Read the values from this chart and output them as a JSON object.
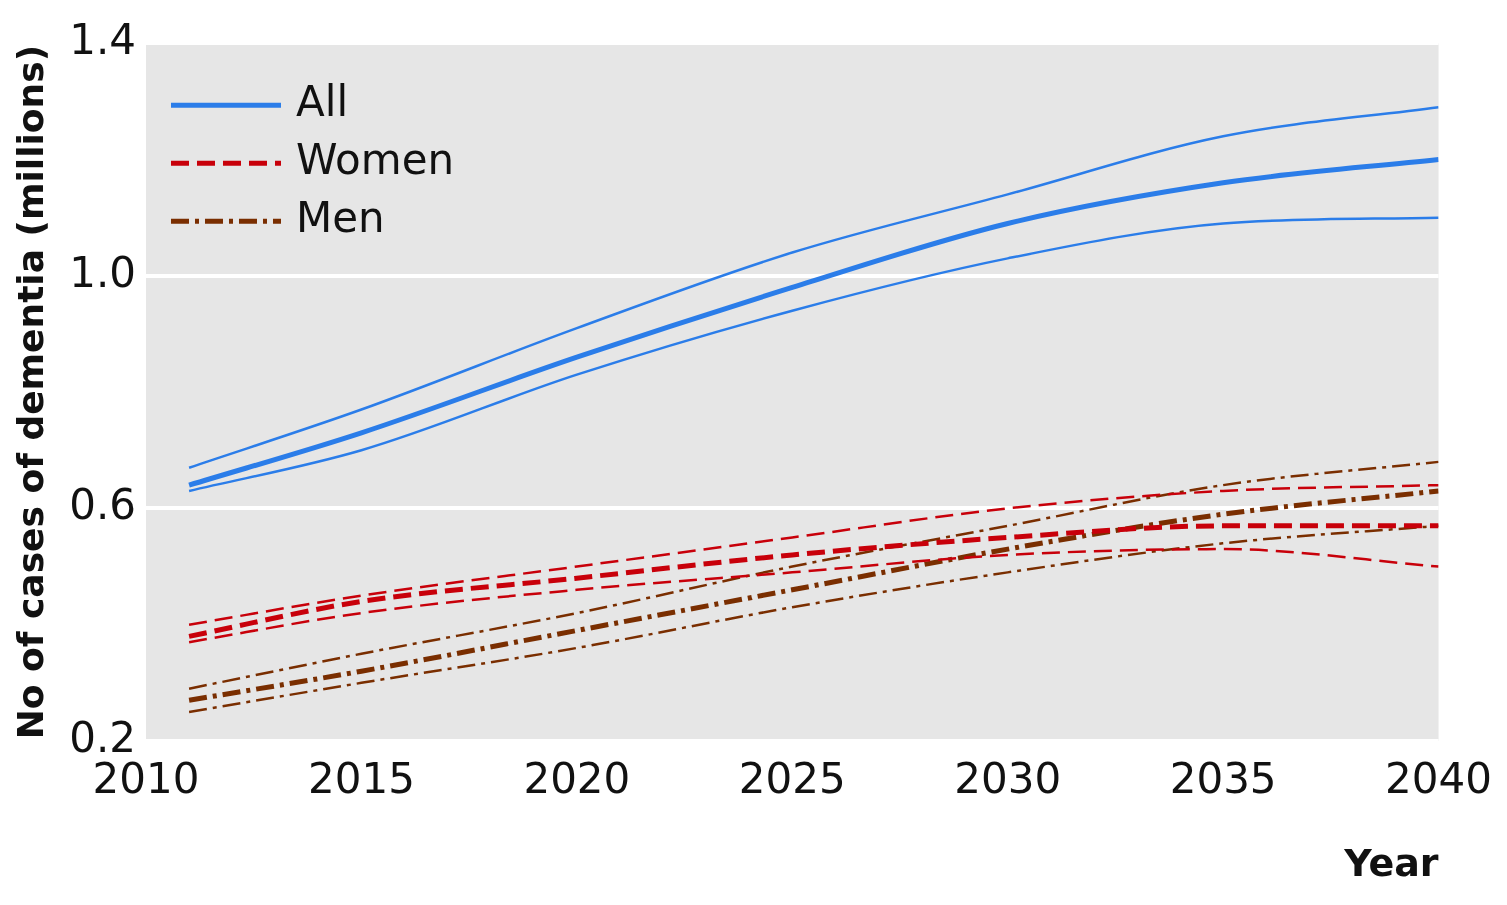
{
  "chart_data": {
    "type": "line",
    "xlabel": "Year",
    "ylabel": "No of cases of dementia (millions)",
    "x": [
      2011,
      2015,
      2020,
      2025,
      2030,
      2035,
      2040
    ],
    "xlim": [
      2010,
      2040
    ],
    "xticks": [
      2010,
      2015,
      2020,
      2025,
      2030,
      2035,
      2040
    ],
    "ylim": [
      0.2,
      1.4
    ],
    "yticks": [
      {
        "value": 0.2,
        "label": "0.2"
      },
      {
        "value": 0.6,
        "label": "0.6"
      },
      {
        "value": 1,
        "label": "1.0"
      },
      {
        "value": 1.4,
        "label": "1.4"
      }
    ],
    "grid": "y",
    "legend": "top left",
    "marker": "none",
    "series": [
      {
        "name": "All",
        "color": "#2b7de9",
        "line_style": "solid",
        "values": [
          0.64,
          0.73,
          0.86,
          0.98,
          1.09,
          1.16,
          1.2
        ]
      },
      {
        "color": "#2b7de9",
        "line_style": "solid",
        "values": [
          0.67,
          0.77,
          0.91,
          1.04,
          1.14,
          1.24,
          1.29
        ]
      },
      {
        "color": "#2b7de9",
        "line_style": "solid",
        "values": [
          0.63,
          0.7,
          0.83,
          0.94,
          1.03,
          1.09,
          1.1
        ]
      },
      {
        "name": "Women",
        "color": "#c8000a",
        "line_style": "dashed",
        "values": [
          0.38,
          0.44,
          0.48,
          0.52,
          0.55,
          0.57,
          0.57
        ]
      },
      {
        "color": "#c8000a",
        "line_style": "dashed",
        "values": [
          0.4,
          0.45,
          0.5,
          0.55,
          0.6,
          0.63,
          0.64
        ]
      },
      {
        "color": "#c8000a",
        "line_style": "dashed",
        "values": [
          0.37,
          0.42,
          0.46,
          0.49,
          0.52,
          0.53,
          0.5
        ]
      },
      {
        "name": "Men",
        "color": "#7a2e00",
        "line_style": "dashdot",
        "values": [
          0.27,
          0.32,
          0.39,
          0.46,
          0.53,
          0.59,
          0.63
        ]
      },
      {
        "color": "#7a2e00",
        "line_style": "dashdot",
        "values": [
          0.29,
          0.35,
          0.42,
          0.5,
          0.57,
          0.64,
          0.68
        ]
      },
      {
        "color": "#7a2e00",
        "line_style": "dashdot",
        "values": [
          0.25,
          0.3,
          0.36,
          0.43,
          0.49,
          0.54,
          0.57
        ]
      }
    ]
  }
}
